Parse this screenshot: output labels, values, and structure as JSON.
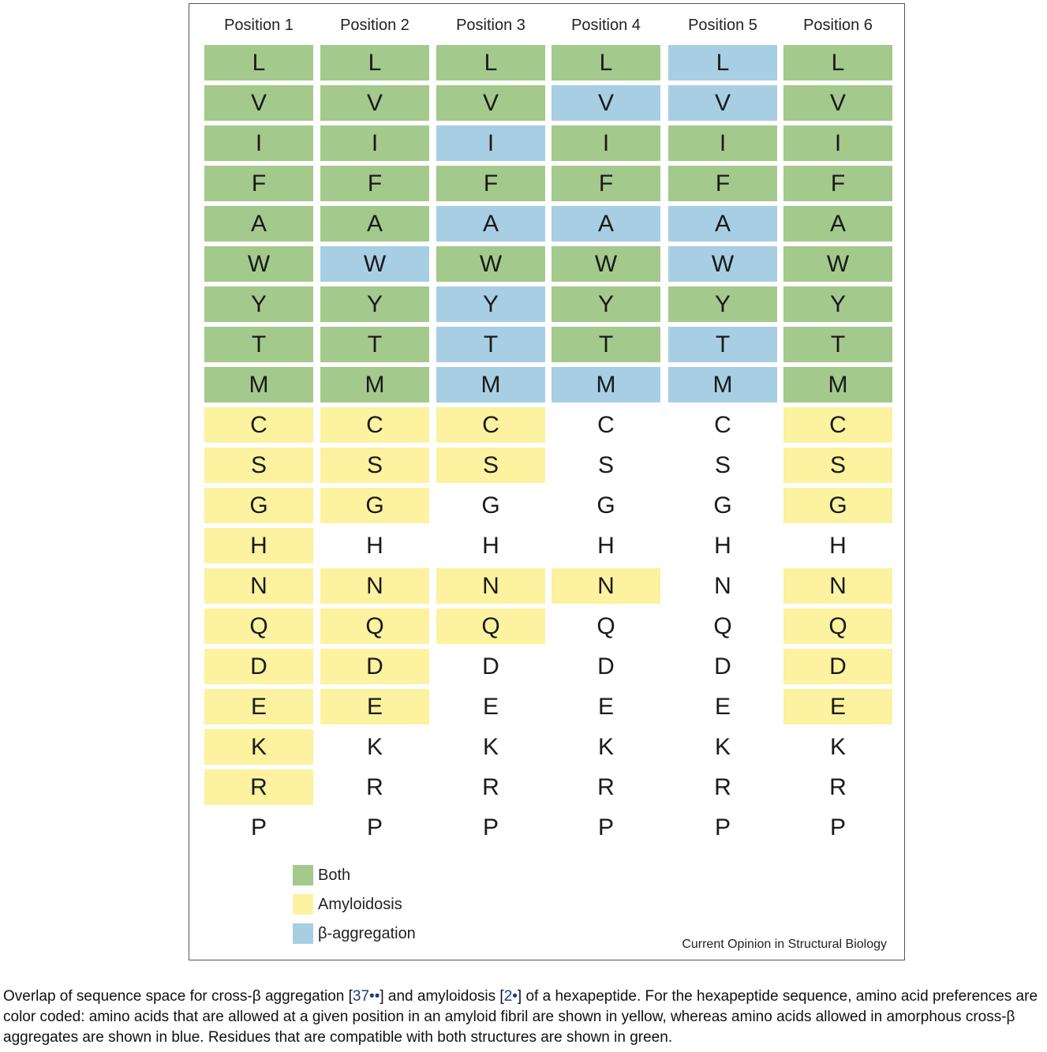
{
  "headers": [
    "Position 1",
    "Position 2",
    "Position 3",
    "Position 4",
    "Position 5",
    "Position 6"
  ],
  "residues": [
    "L",
    "V",
    "I",
    "F",
    "A",
    "W",
    "Y",
    "T",
    "M",
    "C",
    "S",
    "G",
    "H",
    "N",
    "Q",
    "D",
    "E",
    "K",
    "R",
    "P"
  ],
  "colors": {
    "both": "#a3c98d",
    "amyloidosis": "#fcf2a0",
    "beta": "#a7cee3",
    "none": "#ffffff"
  },
  "categories": [
    [
      "both",
      "both",
      "both",
      "both",
      "both",
      "both",
      "both",
      "both",
      "both",
      "amyloidosis",
      "amyloidosis",
      "amyloidosis",
      "amyloidosis",
      "amyloidosis",
      "amyloidosis",
      "amyloidosis",
      "amyloidosis",
      "amyloidosis",
      "amyloidosis",
      "none"
    ],
    [
      "both",
      "both",
      "both",
      "both",
      "both",
      "beta",
      "both",
      "both",
      "both",
      "amyloidosis",
      "amyloidosis",
      "amyloidosis",
      "none",
      "amyloidosis",
      "amyloidosis",
      "amyloidosis",
      "amyloidosis",
      "none",
      "none",
      "none"
    ],
    [
      "both",
      "both",
      "beta",
      "both",
      "beta",
      "both",
      "beta",
      "beta",
      "beta",
      "amyloidosis",
      "amyloidosis",
      "none",
      "none",
      "amyloidosis",
      "amyloidosis",
      "none",
      "none",
      "none",
      "none",
      "none"
    ],
    [
      "both",
      "beta",
      "both",
      "both",
      "beta",
      "both",
      "both",
      "both",
      "beta",
      "none",
      "none",
      "none",
      "none",
      "amyloidosis",
      "none",
      "none",
      "none",
      "none",
      "none",
      "none"
    ],
    [
      "beta",
      "beta",
      "both",
      "both",
      "beta",
      "beta",
      "both",
      "beta",
      "beta",
      "none",
      "none",
      "none",
      "none",
      "none",
      "none",
      "none",
      "none",
      "none",
      "none",
      "none"
    ],
    [
      "both",
      "both",
      "both",
      "both",
      "both",
      "both",
      "both",
      "both",
      "both",
      "amyloidosis",
      "amyloidosis",
      "amyloidosis",
      "none",
      "amyloidosis",
      "amyloidosis",
      "amyloidosis",
      "amyloidosis",
      "none",
      "none",
      "none"
    ]
  ],
  "legend": [
    {
      "key": "both",
      "label": "Both"
    },
    {
      "key": "amyloidosis",
      "label": "Amyloidosis"
    },
    {
      "key": "beta",
      "label": "β-aggregation"
    }
  ],
  "credit": "Current Opinion in Structural Biology",
  "caption": {
    "part1": "Overlap of sequence space for cross-β aggregation [",
    "ref1": "37••",
    "part2": "] and amyloidosis [",
    "ref2": "2•",
    "part3": "] of a hexapeptide. For the hexapeptide sequence, amino acid preferences are color coded: amino acids that are allowed at a given position in an amyloid fibril are shown in yellow, whereas amino acids allowed in amorphous cross-β aggregates are shown in blue. Residues that are compatible with both structures are shown in green."
  }
}
